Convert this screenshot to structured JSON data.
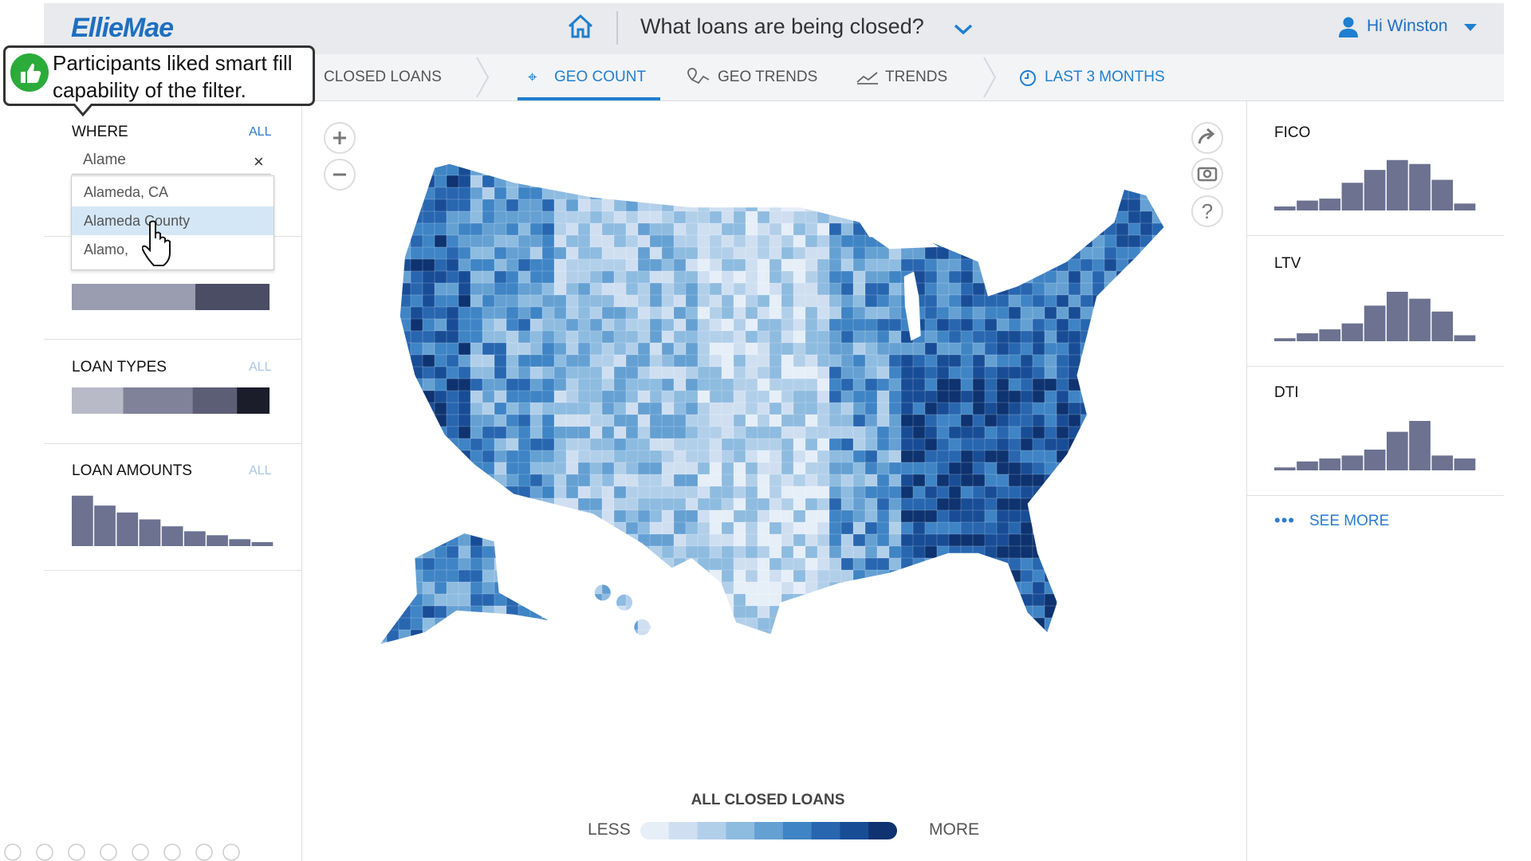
{
  "header": {
    "logo": "EllieMae",
    "question": "What loans are being closed?",
    "user": "Hi Winston"
  },
  "nav": {
    "items": [
      "CLOSED LOANS",
      "GEO COUNT",
      "GEO TRENDS",
      "TRENDS",
      "LAST 3 MONTHS"
    ]
  },
  "callout": {
    "lines": [
      "Participants liked smart fill",
      "capability of the filter."
    ]
  },
  "filters": {
    "where": {
      "label": "WHERE",
      "all": "ALL",
      "input": "Alame",
      "suggestions": [
        "Alameda, CA",
        "Alameda County",
        "Alamo,"
      ]
    },
    "loan_purpose": {
      "shares": [
        62.5,
        37.5
      ]
    },
    "loan_types": {
      "label": "LOAN TYPES",
      "all": "ALL",
      "shares": [
        26,
        35,
        22.5,
        16.5
      ]
    },
    "loan_amounts": {
      "label": "LOAN AMOUNTS",
      "all": "ALL",
      "values": [
        51,
        41,
        34,
        27,
        20,
        15,
        11,
        7,
        4
      ]
    }
  },
  "distributions": [
    {
      "label": "FICO",
      "values": [
        4,
        10,
        12,
        28,
        41,
        51,
        47,
        31,
        7
      ]
    },
    {
      "label": "LTV",
      "values": [
        3,
        8,
        12,
        18,
        36,
        50,
        43,
        30,
        6
      ]
    },
    {
      "label": "DTI",
      "values": [
        3,
        9,
        12,
        15,
        21,
        39,
        50,
        15,
        12
      ]
    }
  ],
  "see_more": "SEE MORE",
  "legend": {
    "title": "ALL CLOSED LOANS",
    "less": "LESS",
    "more": "MORE"
  }
}
